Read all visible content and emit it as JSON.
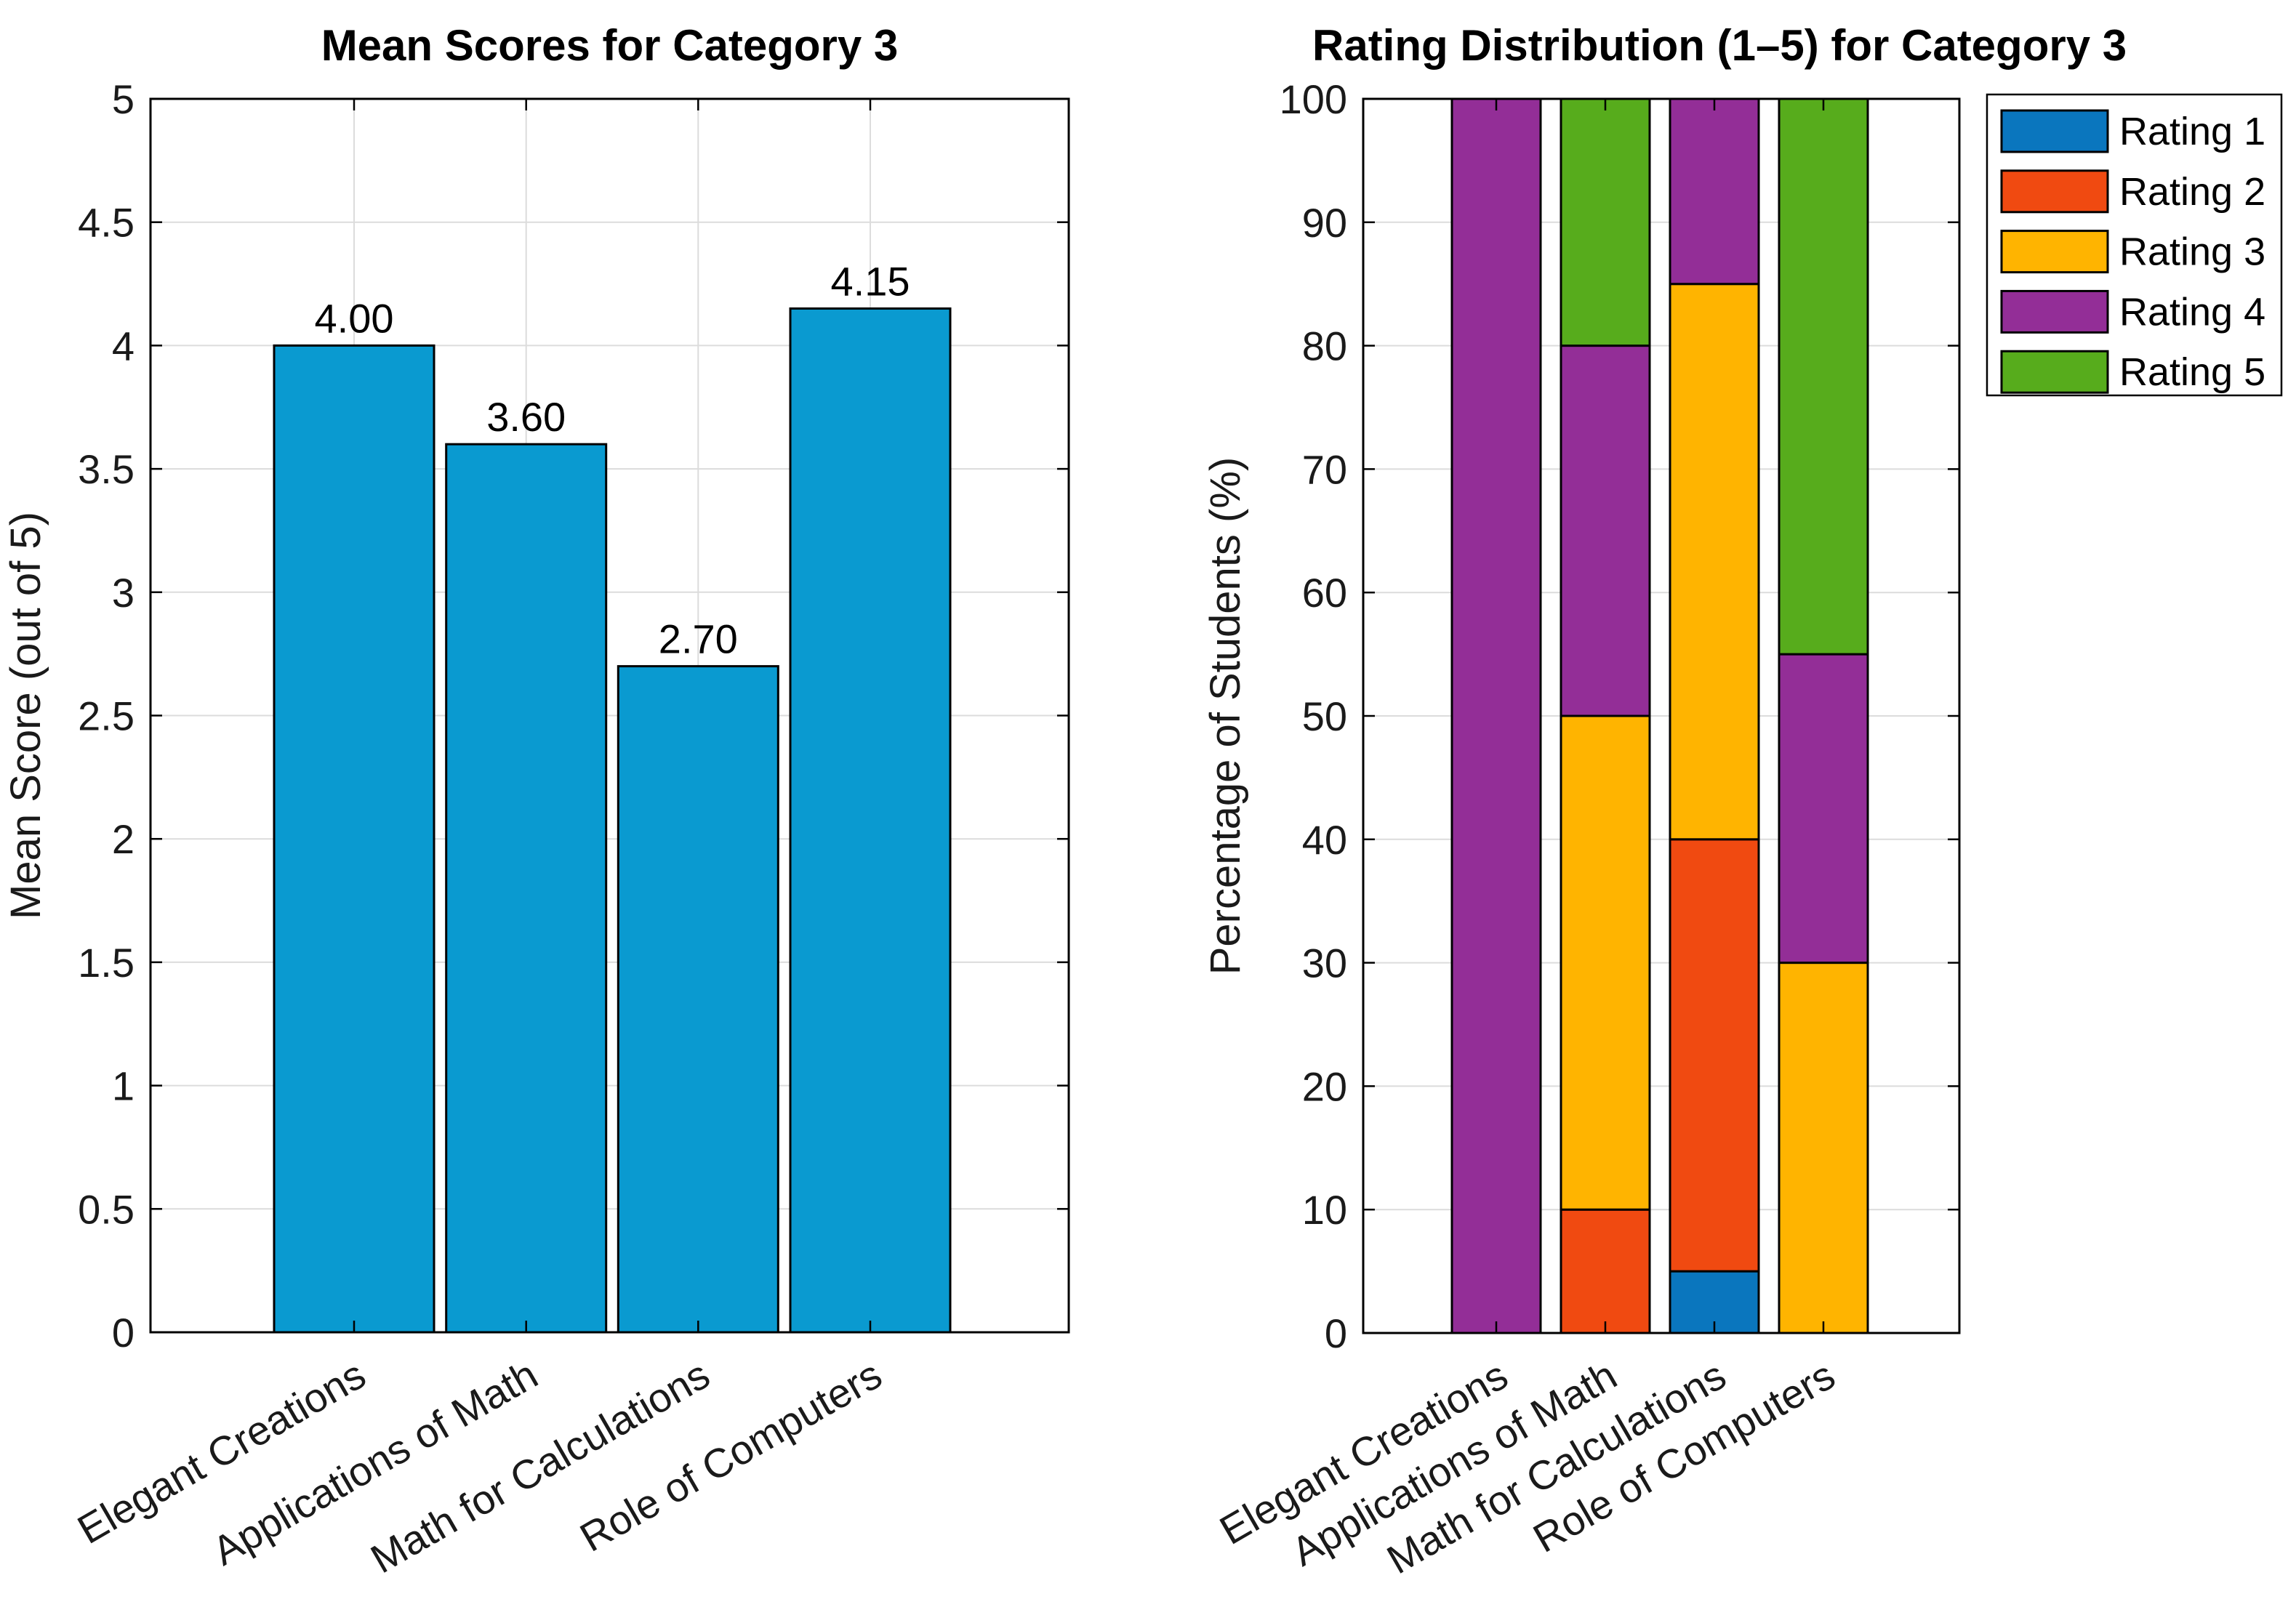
{
  "chart_data": [
    {
      "type": "bar",
      "title": "Mean Scores for Category 3",
      "ylabel": "Mean Score (out of 5)",
      "xlabel": "",
      "categories": [
        "Elegant Creations",
        "Applications of Math",
        "Math for Calculations",
        "Role of Computers"
      ],
      "values": [
        4.0,
        3.6,
        2.7,
        4.15
      ],
      "bar_value_labels": [
        "4.00",
        "3.60",
        "2.70",
        "4.15"
      ],
      "ylim": [
        0,
        5
      ],
      "ytick_step": 0.5,
      "ytick_labels": [
        "0",
        "0.5",
        "1",
        "1.5",
        "2",
        "2.5",
        "3",
        "3.5",
        "4",
        "4.5",
        "5"
      ],
      "grid": "on",
      "bar_color": "#0A9AD0",
      "bar_edge_color": "#000000"
    },
    {
      "type": "stacked-bar",
      "title": "Rating Distribution (1–5) for Category 3",
      "ylabel": "Percentage of Students (%)",
      "xlabel": "",
      "categories": [
        "Elegant Creations",
        "Applications of Math",
        "Math for Calculations",
        "Role of Computers"
      ],
      "series": [
        {
          "name": "Rating 1",
          "color": "#0A76BE",
          "values": [
            0,
            0,
            5,
            0
          ]
        },
        {
          "name": "Rating 2",
          "color": "#F04A11",
          "values": [
            0,
            10,
            35,
            0
          ]
        },
        {
          "name": "Rating 3",
          "color": "#FFB400",
          "values": [
            0,
            40,
            45,
            30
          ]
        },
        {
          "name": "Rating 4",
          "color": "#932E97",
          "values": [
            100,
            30,
            15,
            25
          ]
        },
        {
          "name": "Rating 5",
          "color": "#57AC1C",
          "values": [
            0,
            20,
            0,
            45
          ]
        }
      ],
      "ylim": [
        0,
        100
      ],
      "ytick_step": 10,
      "ytick_labels": [
        "0",
        "10",
        "20",
        "30",
        "40",
        "50",
        "60",
        "70",
        "80",
        "90",
        "100"
      ],
      "grid": "on",
      "legend": {
        "position": "upper-right-outside",
        "entries": [
          "Rating 1",
          "Rating 2",
          "Rating 3",
          "Rating 4",
          "Rating 5"
        ]
      }
    }
  ],
  "style_colors": {
    "axes_edge": "#000000",
    "grid_line": "#DCDCDC",
    "tick_label": "#1A1A1A",
    "background": "#FFFFFF"
  }
}
